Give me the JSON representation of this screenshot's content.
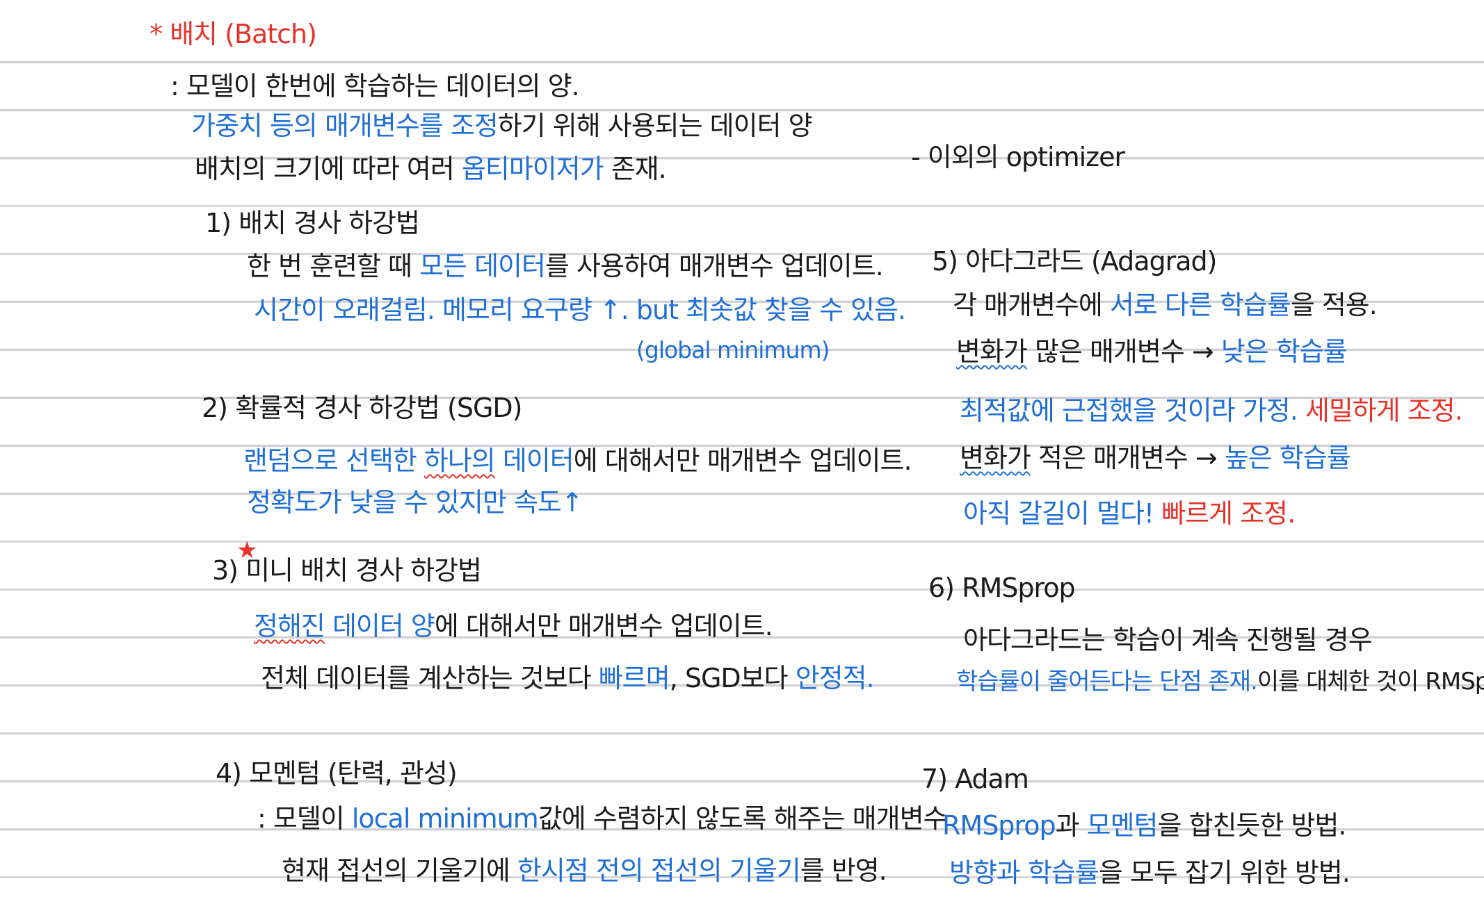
{
  "left": {
    "title": "* 배치 (Batch)",
    "definition": ": 모델이 한번에 학습하는 데이터의 양.",
    "line2_blue": "가중치 등의 매개변수를 조정",
    "line2_black": "하기 위해 사용되는 데이터 양",
    "line3_a": "배치의 크기에 따라 여러 ",
    "line3_blue": "옵티마이저가",
    "line3_b": " 존재.",
    "s1": {
      "heading": "1) 배치 경사 하강법",
      "desc_a": "한 번 훈련할 때 ",
      "desc_blue": "모든 데이터",
      "desc_b": "를 사용하여 매개변수 업데이트.",
      "note": "시간이 오래걸림. 메모리 요구량 ↑. but 최솟값 찾을 수 있음.",
      "note2": "(global minimum)"
    },
    "s2": {
      "heading": "2) 확률적 경사 하강법 (SGD)",
      "desc_blue1": "랜덤으로 선택한 ",
      "desc_wavy": "하나의",
      "desc_blue2": " 데이터",
      "desc_black": "에 대해서만 매개변수 업데이트.",
      "note": "정확도가 낮을 수 있지만 속도↑"
    },
    "s3": {
      "star": "★",
      "heading": "3) 미니 배치 경사 하강법",
      "desc_wavy": "정해진",
      "desc_blue": " 데이터 양",
      "desc_black": "에 대해서만 매개변수 업데이트.",
      "l2_a": "전체 데이터를 계산하는 것보다 ",
      "l2_blue1": "빠르며",
      "l2_b": ", SGD보다 ",
      "l2_blue2": "안정적."
    },
    "s4": {
      "heading": "4) 모멘텀 (탄력, 관성)",
      "desc_a": ": 모델이 ",
      "desc_blue": "local minimum",
      "desc_b": "값에 수렴하지 않도록 해주는 매개변수",
      "l2_a": "현재 접선의 기울기에 ",
      "l2_blue": "한시점 전의 접선의 기울기",
      "l2_b": "를 반영."
    }
  },
  "right": {
    "others": "- 이외의 optimizer",
    "s5": {
      "heading": "5) 아다그라드 (Adagrad)",
      "desc_a": "각 매개변수에 ",
      "desc_blue": "서로 다른 학습률",
      "desc_b": "을 적용.",
      "a_wavy": "변화가",
      "a_black": " 많은 매개변수 → ",
      "a_blue": "낮은 학습률",
      "a_note_blue": "최적값에 근접했을 것이라 가정. ",
      "a_note_red": "세밀하게 조정.",
      "b_wavy": "변화가",
      "b_black": " 적은 매개변수 → ",
      "b_blue": "높은 학습률",
      "b_note_blue": "아직 갈길이 멀다! ",
      "b_note_red": "빠르게 조정."
    },
    "s6": {
      "heading": "6) RMSprop",
      "desc": "아다그라드는 학습이 계속 진행될 경우",
      "l2_blue": "학습률이 줄어든다는 단점 존재.",
      "l2_black": "이를 대체한 것이 RMSprop"
    },
    "s7": {
      "heading": "7) Adam",
      "l1_blue1": "RMSprop",
      "l1_a": "과 ",
      "l1_blue2": "모멘텀",
      "l1_b": "을 합친듯한 방법.",
      "l2_blue": "방향과 학습률",
      "l2_black": "을 모두 잡기 위한 방법."
    }
  },
  "colors": {
    "blue": "#1f6fd6",
    "red": "#e6332a",
    "ink": "#1b1b1b",
    "rule": "#cfcfd4"
  }
}
